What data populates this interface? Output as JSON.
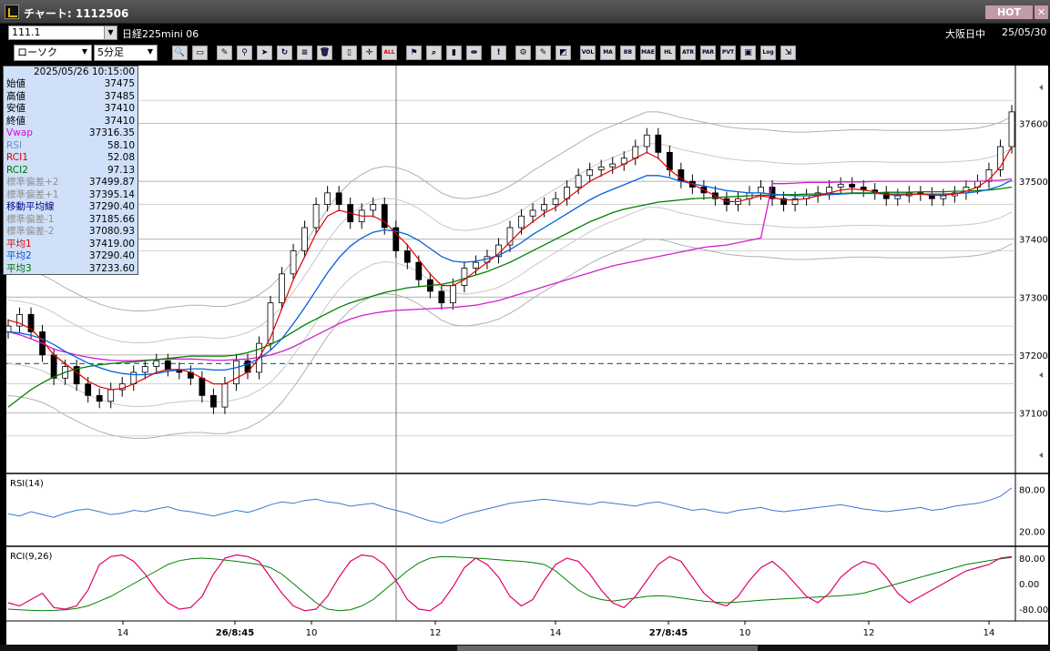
{
  "window": {
    "title": "チャート: 1112506",
    "hot_label": "HOT",
    "close_label": "✕"
  },
  "symbol_bar": {
    "symbol": "111.1",
    "instrument": "日経225mini 06",
    "session": "大阪日中",
    "date": "25/05/30"
  },
  "toolbar": {
    "chart_type": "ローソク",
    "interval": "5分足",
    "buttons": [
      "zoom-icon",
      "window-icon",
      "pen-icon",
      "link-icon",
      "cursor-icon",
      "refresh-icon",
      "list-icon",
      "trash-icon",
      "candle-icon",
      "cross-icon",
      "ALL",
      "drawing-icon",
      "search-icon",
      "bar-icon",
      "split-icon",
      "info-icon",
      "gear-icon",
      "wrench-icon",
      "palette-icon",
      "VOL",
      "MA",
      "BB",
      "MAE",
      "HL",
      "ATR",
      "PAR",
      "PVT",
      "box-icon",
      "Log",
      "export-icon"
    ]
  },
  "info_panel": {
    "datetime": "2025/05/26  10:15:00",
    "rows": [
      {
        "label": "始値",
        "value": "37475",
        "color": "#000000"
      },
      {
        "label": "高値",
        "value": "37485",
        "color": "#000000"
      },
      {
        "label": "安値",
        "value": "37410",
        "color": "#000000"
      },
      {
        "label": "終値",
        "value": "37410",
        "color": "#000000"
      },
      {
        "label": "Vwap",
        "value": "37316.35",
        "color": "#e000e0"
      },
      {
        "label": "RSI",
        "value": "58.10",
        "color": "#6a8fd0"
      },
      {
        "label": "RCI1",
        "value": "52.08",
        "color": "#e00000"
      },
      {
        "label": "RCI2",
        "value": "97.13",
        "color": "#007000"
      },
      {
        "label": "標準偏差+2",
        "value": "37499.87",
        "color": "#909090"
      },
      {
        "label": "標準偏差+1",
        "value": "37395.14",
        "color": "#909090"
      },
      {
        "label": "移動平均線",
        "value": "37290.40",
        "color": "#000080"
      },
      {
        "label": "標準偏差-1",
        "value": "37185.66",
        "color": "#909090"
      },
      {
        "label": "標準偏差-2",
        "value": "37080.93",
        "color": "#909090"
      },
      {
        "label": "平均1",
        "value": "37419.00",
        "color": "#e00000"
      },
      {
        "label": "平均2",
        "value": "37290.40",
        "color": "#0050e0"
      },
      {
        "label": "平均3",
        "value": "37233.60",
        "color": "#007000"
      }
    ]
  },
  "chart_data": {
    "type": "line",
    "price_axis": {
      "min": 37000,
      "max": 37700,
      "ticks": [
        "37600",
        "37500",
        "37400",
        "37300",
        "37200",
        "37100"
      ]
    },
    "x_ticks": [
      "14",
      "26/8:45",
      "10",
      "12",
      "14",
      "27/8:45",
      "10",
      "12",
      "14"
    ],
    "reference_line": 37185,
    "close": [
      37250,
      37270,
      37240,
      37200,
      37160,
      37180,
      37150,
      37130,
      37120,
      37140,
      37150,
      37170,
      37180,
      37190,
      37175,
      37170,
      37160,
      37130,
      37110,
      37150,
      37190,
      37170,
      37220,
      37290,
      37340,
      37380,
      37420,
      37460,
      37480,
      37460,
      37430,
      37450,
      37460,
      37420,
      37380,
      37360,
      37330,
      37310,
      37290,
      37320,
      37350,
      37360,
      37370,
      37390,
      37420,
      37440,
      37450,
      37460,
      37470,
      37490,
      37510,
      37520,
      37525,
      37530,
      37540,
      37560,
      37580,
      37550,
      37520,
      37500,
      37490,
      37480,
      37470,
      37460,
      37470,
      37480,
      37490,
      37470,
      37460,
      37470,
      37475,
      37480,
      37490,
      37495,
      37490,
      37485,
      37480,
      37470,
      37475,
      37480,
      37478,
      37470,
      37475,
      37480,
      37490,
      37500,
      37520,
      37560,
      37620
    ],
    "ma_fast": [
      37260,
      37255,
      37245,
      37225,
      37200,
      37185,
      37170,
      37155,
      37145,
      37140,
      37142,
      37150,
      37160,
      37170,
      37175,
      37175,
      37170,
      37160,
      37150,
      37150,
      37160,
      37170,
      37195,
      37230,
      37280,
      37330,
      37370,
      37410,
      37440,
      37450,
      37445,
      37440,
      37440,
      37430,
      37410,
      37390,
      37365,
      37340,
      37320,
      37320,
      37330,
      37345,
      37360,
      37375,
      37395,
      37415,
      37430,
      37445,
      37455,
      37470,
      37485,
      37500,
      37510,
      37520,
      37530,
      37540,
      37550,
      37540,
      37520,
      37505,
      37495,
      37485,
      37475,
      37465,
      37465,
      37470,
      37475,
      37472,
      37468,
      37468,
      37470,
      37475,
      37480,
      37485,
      37487,
      37485,
      37482,
      37477,
      37476,
      37477,
      37478,
      37476,
      37476,
      37478,
      37483,
      37490,
      37503,
      37525,
      37560
    ],
    "ma_mid": [
      37240,
      37238,
      37234,
      37228,
      37218,
      37206,
      37196,
      37186,
      37178,
      37172,
      37168,
      37166,
      37166,
      37168,
      37172,
      37174,
      37176,
      37176,
      37174,
      37174,
      37178,
      37184,
      37194,
      37208,
      37228,
      37254,
      37282,
      37312,
      37342,
      37368,
      37388,
      37402,
      37412,
      37416,
      37414,
      37408,
      37398,
      37384,
      37370,
      37362,
      37360,
      37362,
      37366,
      37372,
      37382,
      37394,
      37408,
      37420,
      37432,
      37444,
      37456,
      37468,
      37478,
      37486,
      37494,
      37502,
      37510,
      37510,
      37506,
      37500,
      37496,
      37492,
      37488,
      37484,
      37482,
      37480,
      37480,
      37478,
      37476,
      37475,
      37475,
      37476,
      37477,
      37478,
      37479,
      37479,
      37479,
      37478,
      37478,
      37478,
      37478,
      37478,
      37478,
      37479,
      37480,
      37482,
      37486,
      37492,
      37502
    ],
    "ma_slow": [
      37110,
      37125,
      37140,
      37152,
      37162,
      37170,
      37176,
      37180,
      37183,
      37185,
      37187,
      37188,
      37190,
      37192,
      37194,
      37196,
      37198,
      37198,
      37198,
      37198,
      37200,
      37204,
      37210,
      37218,
      37228,
      37240,
      37252,
      37262,
      37272,
      37282,
      37290,
      37296,
      37302,
      37308,
      37312,
      37316,
      37318,
      37320,
      37322,
      37326,
      37332,
      37338,
      37344,
      37352,
      37360,
      37370,
      37380,
      37390,
      37400,
      37410,
      37420,
      37430,
      37438,
      37446,
      37452,
      37456,
      37460,
      37464,
      37466,
      37468,
      37470,
      37471,
      37472,
      37473,
      37474,
      37475,
      37476,
      37476,
      37477,
      37477,
      37478,
      37478,
      37479,
      37479,
      37480,
      37480,
      37480,
      37481,
      37481,
      37481,
      37482,
      37482,
      37482,
      37483,
      37483,
      37484,
      37485,
      37487,
      37490
    ],
    "vwap": [
      37240,
      37235,
      37228,
      37220,
      37210,
      37205,
      37200,
      37196,
      37193,
      37191,
      37190,
      37190,
      37191,
      37192,
      37193,
      37193,
      37193,
      37192,
      37191,
      37191,
      37192,
      37193,
      37196,
      37200,
      37206,
      37214,
      37224,
      37234,
      37244,
      37254,
      37262,
      37268,
      37272,
      37275,
      37277,
      37278,
      37279,
      37280,
      37281,
      37282,
      37284,
      37286,
      37290,
      37294,
      37300,
      37306,
      37312,
      37318,
      37324,
      37330,
      37336,
      37342,
      37348,
      37354,
      37358,
      37362,
      37366,
      37370,
      37374,
      37378,
      37382,
      37386,
      37388,
      37390,
      37394,
      37398,
      37402,
      37496,
      37496,
      37497,
      37498,
      37498,
      37498,
      37499,
      37499,
      37499,
      37500,
      37500,
      37500,
      37500,
      37500,
      37500,
      37500,
      37500,
      37500,
      37500,
      37501,
      37502,
      37504
    ],
    "rsi_panel": {
      "label": "RSI(14)",
      "ticks": [
        "80.00",
        "20.00"
      ],
      "values": [
        45,
        42,
        48,
        44,
        40,
        46,
        50,
        52,
        48,
        44,
        46,
        50,
        48,
        52,
        55,
        50,
        48,
        45,
        42,
        46,
        50,
        47,
        52,
        58,
        62,
        60,
        64,
        66,
        62,
        60,
        56,
        58,
        60,
        54,
        50,
        46,
        40,
        35,
        32,
        38,
        44,
        48,
        52,
        56,
        60,
        62,
        64,
        66,
        64,
        62,
        60,
        58,
        62,
        60,
        58,
        56,
        60,
        62,
        58,
        54,
        50,
        52,
        48,
        46,
        50,
        52,
        54,
        50,
        48,
        50,
        52,
        54,
        56,
        58,
        55,
        52,
        50,
        48,
        50,
        52,
        54,
        50,
        52,
        56,
        58,
        60,
        64,
        70,
        82
      ]
    },
    "rci_panel": {
      "label": "RCI(9,26)",
      "ticks": [
        "80.00",
        "0.00",
        "-80.00"
      ],
      "rci1": [
        -60,
        -70,
        -50,
        -30,
        -75,
        -80,
        -70,
        -20,
        60,
        85,
        90,
        70,
        30,
        -20,
        -60,
        -80,
        -75,
        -40,
        30,
        80,
        90,
        85,
        70,
        20,
        -30,
        -70,
        -85,
        -80,
        -40,
        20,
        70,
        90,
        85,
        60,
        10,
        -50,
        -80,
        -85,
        -60,
        -10,
        50,
        80,
        60,
        20,
        -40,
        -70,
        -50,
        10,
        60,
        80,
        70,
        30,
        -20,
        -60,
        -75,
        -40,
        10,
        60,
        85,
        70,
        20,
        -30,
        -60,
        -70,
        -40,
        10,
        50,
        70,
        40,
        0,
        -40,
        -60,
        -30,
        20,
        50,
        70,
        60,
        20,
        -30,
        -60,
        -40,
        -20,
        0,
        20,
        40,
        50,
        60,
        80,
        85
      ],
      "rci2": [
        -80,
        -82,
        -84,
        -85,
        -84,
        -82,
        -78,
        -70,
        -55,
        -40,
        -20,
        0,
        20,
        40,
        60,
        72,
        78,
        80,
        78,
        74,
        70,
        65,
        60,
        50,
        30,
        0,
        -30,
        -60,
        -80,
        -85,
        -82,
        -70,
        -50,
        -20,
        10,
        40,
        65,
        80,
        85,
        84,
        82,
        80,
        78,
        75,
        72,
        70,
        66,
        60,
        40,
        10,
        -20,
        -40,
        -50,
        -55,
        -50,
        -45,
        -40,
        -38,
        -40,
        -45,
        -50,
        -55,
        -58,
        -60,
        -58,
        -55,
        -52,
        -50,
        -48,
        -46,
        -44,
        -42,
        -40,
        -38,
        -35,
        -30,
        -20,
        -10,
        0,
        10,
        20,
        30,
        40,
        50,
        60,
        66,
        72,
        78,
        82
      ]
    }
  }
}
